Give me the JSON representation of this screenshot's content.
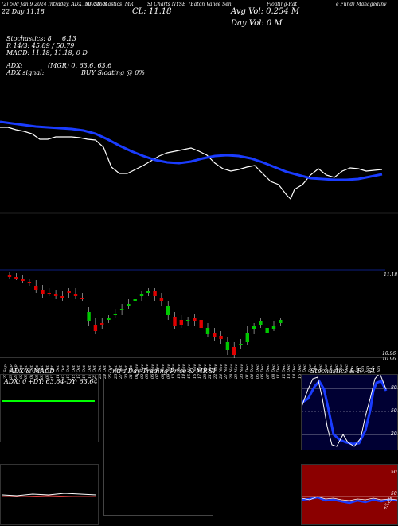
{
  "header": {
    "line1_a": "(2) 50d",
    "line1_b": "Jan 9 2024",
    "line1_c": "Intraday, ADX, MACD, R",
    "line1_d": "SI, Stochastics, MR",
    "line1_e": "SI Charts",
    "line1_f": "NYSE",
    "line1_g": "(Eaton Vance Seni",
    "line1_h": "Floating-Rat",
    "line1_i": "e Fund) ManagedInv",
    "line2_a": "22 Day",
    "line2_b": "11.18",
    "close_label": "CL: 11.18",
    "avg_vol": "Avg Vol: 0.254  M",
    "day_vol": "Day Vol: 0   M"
  },
  "indicators": {
    "stochastics": "Stochastics: 8",
    "stoch_val": "6.13",
    "r_line": "R  14/3: 45.89 / 50.79",
    "macd": "MACD: 11.18,  11.18,  0  D",
    "adx": "ADX:",
    "adx_val": "(MGR) 0,  63.6,  63.6",
    "adx_signal": "ADX  signal:",
    "buy_signal": "BUY Sloating @ 0%"
  },
  "price_axis": {
    "top": "11.18",
    "low1": "10.96",
    "low2": "10.96"
  },
  "dates": [
    "27 Sep",
    "28 Sep",
    "29 Sep",
    "02 Oct",
    "03 Oct",
    "04 Oct",
    "05 Oct",
    "06 Oct",
    "09 Oct",
    "10 Oct",
    "11 Oct",
    "12 Oct",
    "13 Oct",
    "16 Oct",
    "17 Oct",
    "18 Oct",
    "19 Oct",
    "20 Oct",
    "23 Oct",
    "24 Oct",
    "25 Oct",
    "26 Oct",
    "27 Oct",
    "30 Oct",
    "31 Oct",
    "01 Nov",
    "02 Nov",
    "03 Nov",
    "06 Nov",
    "07 Nov",
    "08 Nov",
    "09 Nov",
    "10 Nov",
    "13 Nov",
    "14 Nov",
    "15 Nov",
    "16 Nov",
    "17 Nov",
    "20 Nov",
    "21 Nov",
    "22 Nov",
    "24 Nov",
    "27 Nov",
    "28 Nov",
    "29 Nov",
    "30 Nov",
    "01 Dec",
    "04 Dec",
    "05 Dec",
    "06 Dec",
    "07 Dec",
    "08 Dec",
    "11 Dec",
    "12 Dec",
    "13 Dec",
    "14 Dec",
    "15 Dec",
    "18 Dec",
    "19 Dec",
    "20 Dec",
    "21 Dec",
    "22 Dec",
    "26 Dec",
    "27 Dec",
    "28 Dec",
    "29 Dec",
    "02 Jan",
    "03 Jan",
    "04 Jan",
    "05 Jan",
    "08 Jan",
    "09 Jan"
  ],
  "panels": {
    "adx_title": "ADX  & MACD",
    "adx_values": {
      "adx": "ADX: 0",
      "pdy": "+DY: 63.64",
      "mdy": "-DY: 63.64"
    },
    "intraday_title": "Intra  Day Trading Price  & MR",
    "intraday_title_b": "SI",
    "stoch_title": "Stochastics & R",
    "stoch_title_b": "SI",
    "stoch_levels": [
      "80",
      "50",
      "20"
    ],
    "rsi_levels": [
      "50",
      "50"
    ],
    "rsi_val": "45.89"
  },
  "colors": {
    "price_line": "#1a3cff",
    "up": "#00c800",
    "down": "#e00000",
    "rsi_bg": "#8b0000",
    "stoch_bg": "#000033"
  }
}
